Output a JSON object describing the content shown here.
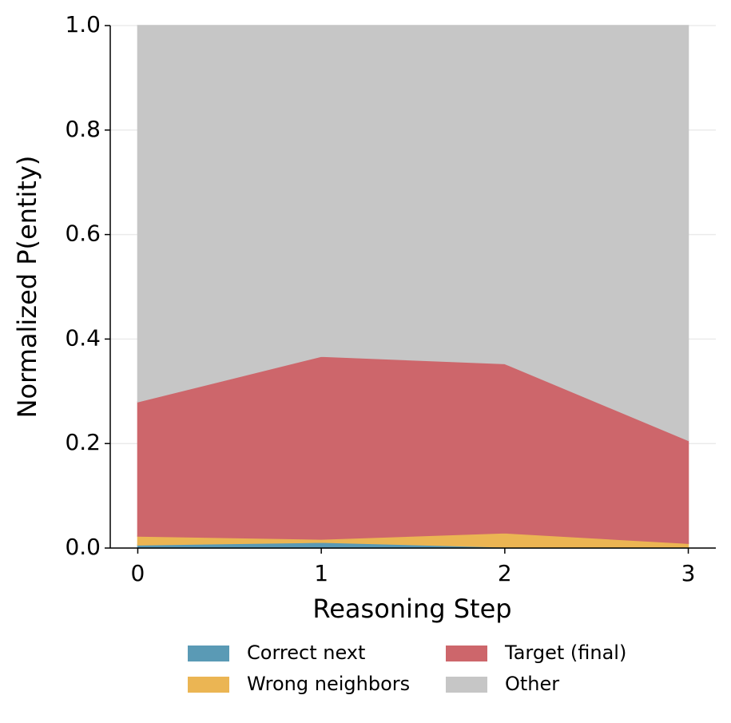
{
  "chart_data": {
    "type": "stacked_area",
    "xlabel": "Reasoning Step",
    "ylabel": "Normalized P(entity)",
    "x": [
      0,
      1,
      2,
      3
    ],
    "xlim": [
      -0.15,
      3.15
    ],
    "xticks": [
      0,
      1,
      2,
      3
    ],
    "ylim": [
      0,
      1
    ],
    "yticks": [
      {
        "value": 0,
        "label": "0.0"
      },
      {
        "value": 0.2,
        "label": "0.2"
      },
      {
        "value": 0.4,
        "label": "0.4"
      },
      {
        "value": 0.6,
        "label": "0.6"
      },
      {
        "value": 0.8,
        "label": "0.8"
      },
      {
        "value": 1,
        "label": "1.0"
      }
    ],
    "grid": true,
    "legend": "bottom",
    "series": [
      {
        "name": "Correct next",
        "color": "#5a9ab5",
        "values": [
          0.006,
          0.011,
          0.002,
          0.002
        ]
      },
      {
        "name": "Wrong neighbors",
        "color": "#ebb553",
        "values": [
          0.017,
          0.006,
          0.027,
          0.007
        ]
      },
      {
        "name": "Target (final)",
        "color": "#cd666b",
        "values": [
          0.257,
          0.35,
          0.324,
          0.197
        ]
      },
      {
        "name": "Other",
        "color": "#c6c6c6",
        "values": [
          0.72,
          0.633,
          0.647,
          0.794
        ]
      }
    ]
  }
}
